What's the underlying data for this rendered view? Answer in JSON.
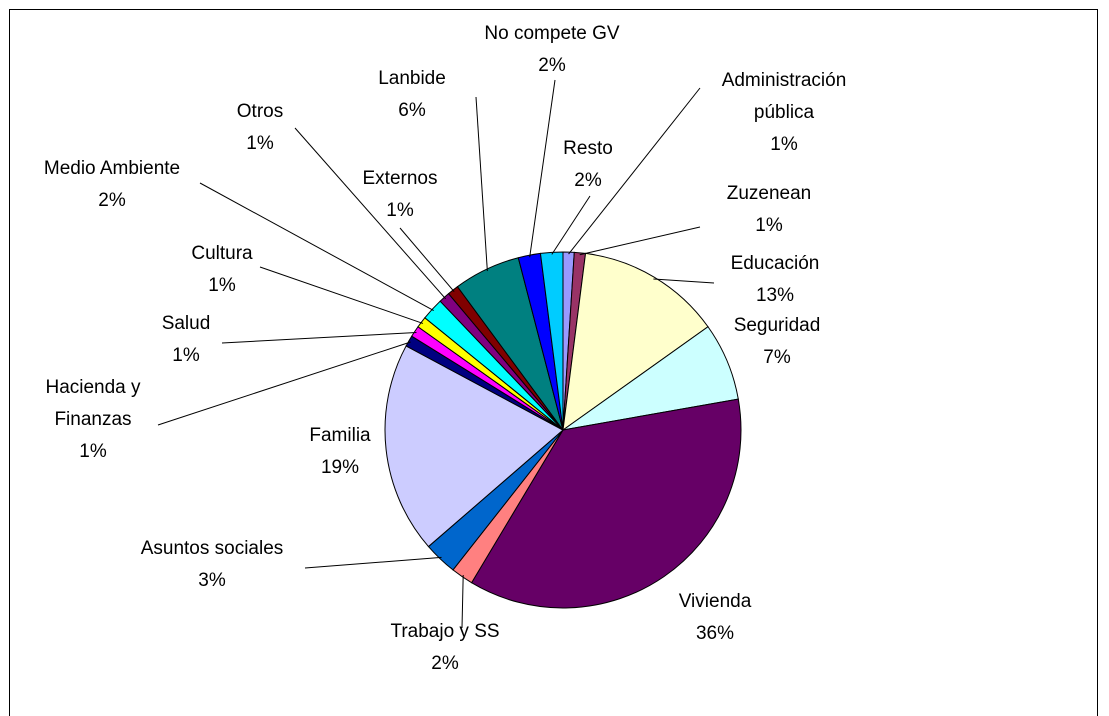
{
  "chart_data": {
    "type": "pie",
    "categories": [
      "Administración pública",
      "Zuzenean",
      "Educación",
      "Seguridad",
      "Vivienda",
      "Trabajo y SS",
      "Asuntos sociales",
      "Familia",
      "Hacienda y Finanzas",
      "Salud",
      "Cultura",
      "Medio Ambiente",
      "Otros",
      "Externos",
      "Lanbide",
      "No compete GV",
      "Resto"
    ],
    "values": [
      1,
      1,
      13,
      7,
      36,
      2,
      3,
      19,
      1,
      1,
      1,
      2,
      1,
      1,
      6,
      2,
      2
    ],
    "value_labels": [
      "1%",
      "1%",
      "13%",
      "7%",
      "36%",
      "2%",
      "3%",
      "19%",
      "1%",
      "1%",
      "1%",
      "2%",
      "1%",
      "1%",
      "6%",
      "2%",
      "2%"
    ],
    "colors": [
      "#9999ff",
      "#993366",
      "#ffffcc",
      "#ccffff",
      "#660066",
      "#ff8080",
      "#0066cc",
      "#ccccff",
      "#000080",
      "#ff00ff",
      "#ffff00",
      "#00ffff",
      "#800080",
      "#800000",
      "#008080",
      "#0000ff",
      "#00ccff"
    ]
  }
}
